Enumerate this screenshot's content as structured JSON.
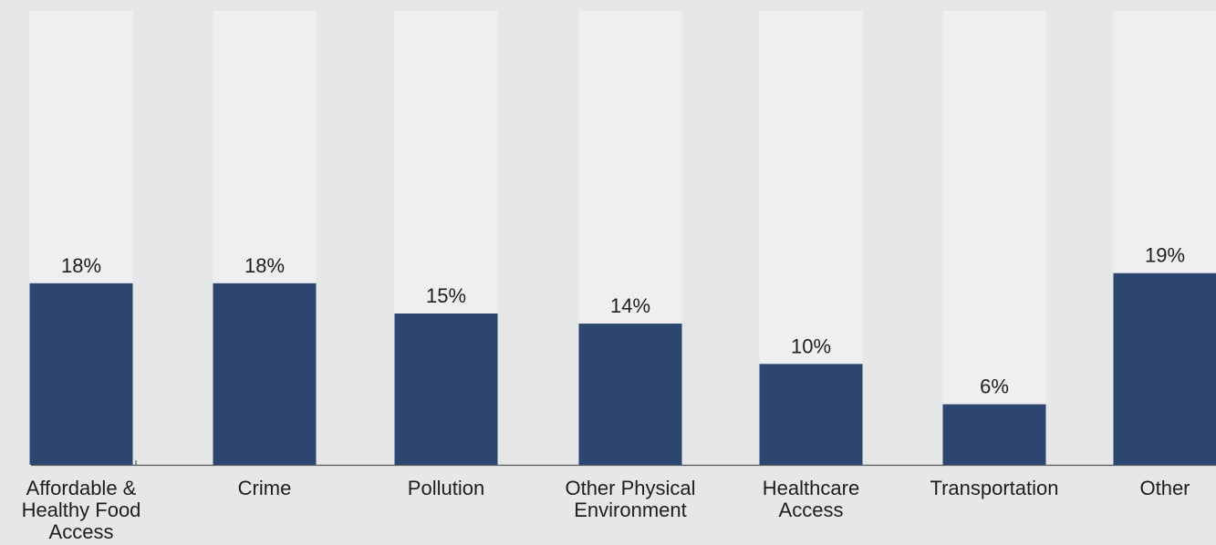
{
  "chart_data": {
    "type": "bar",
    "title": "",
    "xlabel": "",
    "ylabel": "",
    "ylim": [
      0,
      45
    ],
    "grid": false,
    "legend": "none",
    "categories": [
      [
        "Affordable &",
        "Healthy Food",
        "Access"
      ],
      [
        "Crime"
      ],
      [
        "Pollution"
      ],
      [
        "Other Physical",
        "Environment"
      ],
      [
        "Healthcare",
        "Access"
      ],
      [
        "Transportation"
      ],
      [
        "Other"
      ]
    ],
    "values": [
      18,
      18,
      15,
      14,
      10,
      6,
      19
    ],
    "value_labels": [
      "18%",
      "18%",
      "15%",
      "14%",
      "10%",
      "6%",
      "19%"
    ],
    "colors": {
      "background": "#e6e7e9",
      "track": "#efeff1",
      "bar": "#2c4670",
      "axis": "#555555",
      "text": "#1e1e1e"
    }
  }
}
